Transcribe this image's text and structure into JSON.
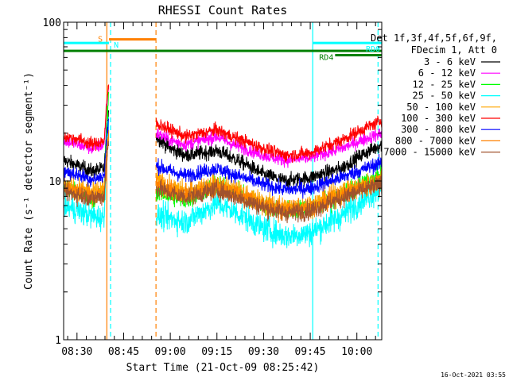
{
  "chart_data": {
    "type": "line",
    "title": "RHESSI Count Rates",
    "xlabel": "Start Time (21-Oct-09 08:25:42)",
    "ylabel": "Count Rate (s⁻¹ detector segment⁻¹)",
    "yscale": "log",
    "ylim": [
      1,
      100
    ],
    "xlim_minutes": [
      25.7,
      128
    ],
    "x_ticks": [
      {
        "label": "08:30",
        "minute": 30
      },
      {
        "label": "08:45",
        "minute": 45
      },
      {
        "label": "09:00",
        "minute": 60
      },
      {
        "label": "09:15",
        "minute": 75
      },
      {
        "label": "09:30",
        "minute": 90
      },
      {
        "label": "09:45",
        "minute": 105
      },
      {
        "label": "10:00",
        "minute": 120
      }
    ],
    "y_ticks": [
      {
        "label": "1",
        "value": 1
      },
      {
        "label": "10",
        "value": 10
      },
      {
        "label": "100",
        "value": 100
      }
    ],
    "data_gap_minutes": [
      40.2,
      55.5
    ],
    "legend_header": [
      "Det 1f,3f,4f,5f,6f,9f,",
      "FDecim 1, Att 0"
    ],
    "series": [
      {
        "name": "3 - 6 keV",
        "color": "#000000",
        "base_left": 13.5,
        "base_right": 16,
        "noise": 0.04,
        "points": [
          [
            25.7,
            13.5
          ],
          [
            30,
            12.5
          ],
          [
            35,
            11.5
          ],
          [
            39,
            12
          ],
          [
            55.5,
            19
          ],
          [
            60,
            16
          ],
          [
            65,
            14.5
          ],
          [
            75,
            15.5
          ],
          [
            80,
            14
          ],
          [
            90,
            11
          ],
          [
            97,
            10
          ],
          [
            105,
            10.5
          ],
          [
            115,
            12
          ],
          [
            128,
            17
          ]
        ]
      },
      {
        "name": "6 - 12 keV",
        "color": "#ff00ff",
        "base_left": 18,
        "base_right": 20,
        "noise": 0.035,
        "points": [
          [
            25.7,
            18
          ],
          [
            30,
            17
          ],
          [
            35,
            16
          ],
          [
            39,
            17
          ],
          [
            55.5,
            20
          ],
          [
            60,
            18
          ],
          [
            65,
            17
          ],
          [
            75,
            19
          ],
          [
            80,
            17
          ],
          [
            90,
            14.5
          ],
          [
            97,
            13.5
          ],
          [
            105,
            14
          ],
          [
            115,
            16
          ],
          [
            128,
            20
          ]
        ]
      },
      {
        "name": "12 - 25 keV",
        "color": "#00ff00",
        "base_left": 9,
        "base_right": 11,
        "noise": 0.05,
        "points": [
          [
            25.7,
            9
          ],
          [
            30,
            8.5
          ],
          [
            35,
            7.6
          ],
          [
            39,
            8.2
          ],
          [
            55.5,
            8.5
          ],
          [
            60,
            8
          ],
          [
            65,
            7.5
          ],
          [
            75,
            9.5
          ],
          [
            80,
            8.8
          ],
          [
            90,
            7
          ],
          [
            97,
            6.5
          ],
          [
            105,
            6.8
          ],
          [
            115,
            8
          ],
          [
            128,
            11
          ]
        ]
      },
      {
        "name": "25 - 50 keV",
        "color": "#00ffff",
        "base_left": 7,
        "base_right": 9,
        "noise": 0.07,
        "points": [
          [
            25.7,
            7
          ],
          [
            30,
            6.5
          ],
          [
            35,
            6
          ],
          [
            39,
            5.8
          ],
          [
            55.5,
            6
          ],
          [
            60,
            5.8
          ],
          [
            65,
            5.5
          ],
          [
            75,
            7.2
          ],
          [
            80,
            6.5
          ],
          [
            90,
            5
          ],
          [
            97,
            4.5
          ],
          [
            105,
            4.7
          ],
          [
            115,
            6
          ],
          [
            128,
            9
          ]
        ]
      },
      {
        "name": "50 - 100 keV",
        "color": "#ffa500",
        "base_left": 9.5,
        "base_right": 10,
        "noise": 0.06,
        "points": [
          [
            25.7,
            9.5
          ],
          [
            30,
            9
          ],
          [
            35,
            8.5
          ],
          [
            39,
            8.8
          ],
          [
            55.5,
            10
          ],
          [
            60,
            9
          ],
          [
            65,
            8.5
          ],
          [
            75,
            9.5
          ],
          [
            80,
            8.8
          ],
          [
            90,
            7.2
          ],
          [
            97,
            6.8
          ],
          [
            105,
            7
          ],
          [
            115,
            8.5
          ],
          [
            128,
            10
          ]
        ]
      },
      {
        "name": "100 - 300 keV",
        "color": "#ff0000",
        "base_left": 19,
        "base_right": 24,
        "noise": 0.035,
        "points": [
          [
            25.7,
            19
          ],
          [
            30,
            18.5
          ],
          [
            35,
            17
          ],
          [
            39,
            18
          ],
          [
            55.5,
            23
          ],
          [
            60,
            21
          ],
          [
            65,
            19
          ],
          [
            75,
            21
          ],
          [
            80,
            19
          ],
          [
            90,
            16
          ],
          [
            97,
            14.5
          ],
          [
            105,
            15
          ],
          [
            115,
            18
          ],
          [
            128,
            24
          ]
        ]
      },
      {
        "name": "300 - 800 keV",
        "color": "#0000ff",
        "base_left": 11.5,
        "base_right": 13,
        "noise": 0.04,
        "points": [
          [
            25.7,
            11.5
          ],
          [
            30,
            11
          ],
          [
            35,
            10.2
          ],
          [
            39,
            10.8
          ],
          [
            55.5,
            12.5
          ],
          [
            60,
            11.5
          ],
          [
            65,
            10.8
          ],
          [
            75,
            12
          ],
          [
            80,
            11
          ],
          [
            90,
            9.5
          ],
          [
            97,
            8.8
          ],
          [
            105,
            9
          ],
          [
            115,
            10.5
          ],
          [
            128,
            13
          ]
        ]
      },
      {
        "name": "800 - 7000 keV",
        "color": "#ff8000",
        "base_left": 9,
        "base_right": 10,
        "noise": 0.05,
        "points": [
          [
            25.7,
            9
          ],
          [
            30,
            8.6
          ],
          [
            35,
            8
          ],
          [
            39,
            8.3
          ],
          [
            55.5,
            9.5
          ],
          [
            60,
            8.8
          ],
          [
            65,
            8.2
          ],
          [
            75,
            9.2
          ],
          [
            80,
            8.5
          ],
          [
            90,
            7
          ],
          [
            97,
            6.5
          ],
          [
            105,
            6.7
          ],
          [
            115,
            8
          ],
          [
            128,
            10
          ]
        ]
      },
      {
        "name": "7000 - 15000 keV",
        "color": "#a0522d",
        "base_left": 8.5,
        "base_right": 9.5,
        "noise": 0.05,
        "points": [
          [
            25.7,
            8.5
          ],
          [
            30,
            8.2
          ],
          [
            35,
            7.8
          ],
          [
            39,
            8
          ],
          [
            55.5,
            9
          ],
          [
            60,
            8.4
          ],
          [
            65,
            7.9
          ],
          [
            75,
            8.8
          ],
          [
            80,
            8.1
          ],
          [
            90,
            6.8
          ],
          [
            97,
            6.3
          ],
          [
            105,
            6.5
          ],
          [
            115,
            7.8
          ],
          [
            128,
            9.5
          ]
        ]
      }
    ],
    "flag_bars": [
      {
        "label": "S",
        "color": "#ff8000",
        "start": 40.3,
        "end": 55.3,
        "level": 78
      },
      {
        "label": "N",
        "color": "#00ffff",
        "start": 25.7,
        "end": 40.3,
        "level": 74
      },
      {
        "label": "",
        "color": "#008000",
        "start": 25.7,
        "end": 128,
        "level": 66
      },
      {
        "label": "RD0",
        "color": "#00ffff",
        "start": 105.8,
        "end": 128,
        "level": 74
      },
      {
        "label": "RD4",
        "color": "#008000",
        "start": 113,
        "end": 128,
        "level": 62
      }
    ],
    "vertical_markers": [
      {
        "minute": 39.6,
        "color": "#ff8000",
        "style": "solid"
      },
      {
        "minute": 40.8,
        "color": "#00ffff",
        "style": "dashed"
      },
      {
        "minute": 55.4,
        "color": "#ff8000",
        "style": "dashed"
      },
      {
        "minute": 105.8,
        "color": "#00ffff",
        "style": "solid"
      },
      {
        "minute": 126.8,
        "color": "#00ffff",
        "style": "dashed"
      }
    ],
    "bottom_right_stamp": "16-Oct-2021 03:55"
  }
}
